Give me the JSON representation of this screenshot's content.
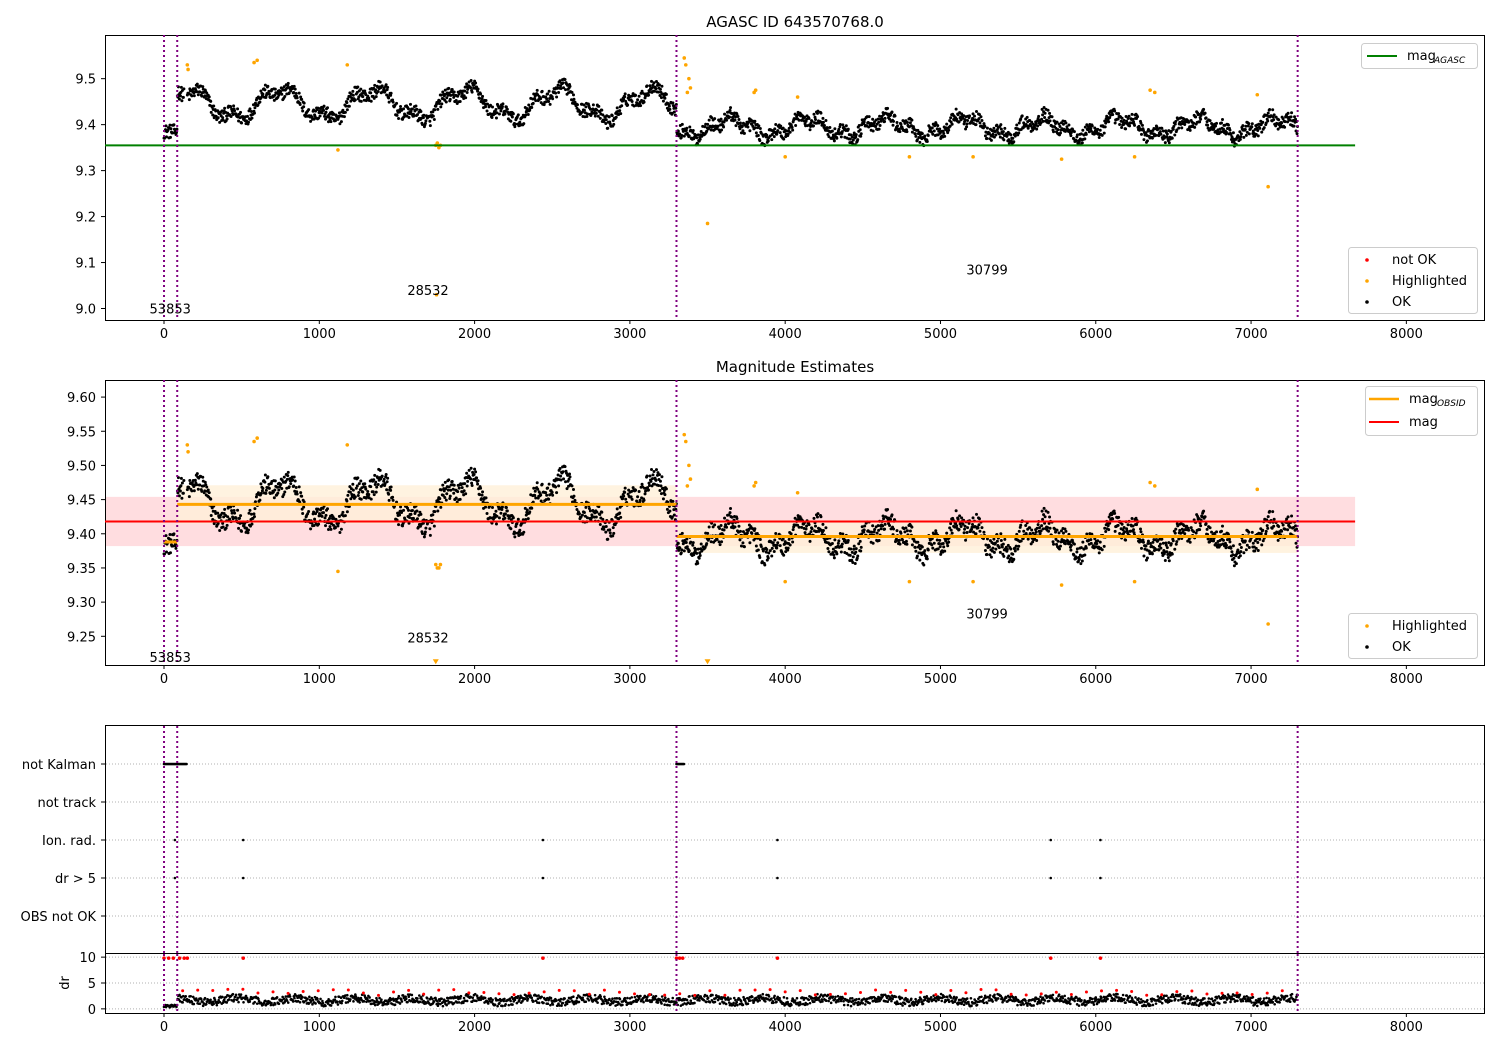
{
  "colors": {
    "ok": "#000000",
    "highlighted": "#ffa500",
    "not_ok": "#ff0000",
    "agasc_line": "#008000",
    "mag_line": "#ff0000",
    "obsid_line": "#ffa500",
    "obs_boundary": "#800080",
    "mag_band": "#ffdde0",
    "obsid_band": "#fff0d8"
  },
  "chart_data": [
    {
      "id": "agasc",
      "type": "scatter",
      "title": "AGASC ID 643570768.0",
      "xlim": [
        -380,
        8500
      ],
      "ylim": [
        8.975,
        9.595
      ],
      "xticks": [
        0,
        1000,
        2000,
        3000,
        4000,
        5000,
        6000,
        7000,
        8000
      ],
      "yticks": [
        9.0,
        9.1,
        9.2,
        9.3,
        9.4,
        9.5
      ],
      "ytick_labels": [
        "9.0",
        "9.1",
        "9.2",
        "9.3",
        "9.4",
        "9.5"
      ],
      "obs_boundaries": [
        0,
        85,
        3300,
        7300
      ],
      "obsid_labels": [
        {
          "text": "53853",
          "x": 40,
          "y": 9.0
        },
        {
          "text": "28532",
          "x": 1700,
          "y": 9.04
        },
        {
          "text": "30799",
          "x": 5300,
          "y": 9.085
        }
      ],
      "agasc_mag": 9.355,
      "agasc_line_x": [
        -380,
        7670
      ],
      "legend_lines": [
        {
          "label": "mag",
          "sub": "AGASC",
          "color": "#008000"
        }
      ],
      "legend_points": [
        {
          "label": "not OK",
          "color": "#ff0000"
        },
        {
          "label": "Highlighted",
          "color": "#ffa500"
        },
        {
          "label": "OK",
          "color": "#000000"
        }
      ],
      "highlighted_points": [
        [
          150,
          9.53
        ],
        [
          155,
          9.52
        ],
        [
          580,
          9.535
        ],
        [
          600,
          9.54
        ],
        [
          1120,
          9.345
        ],
        [
          1180,
          9.53
        ],
        [
          1750,
          9.355
        ],
        [
          1760,
          9.36
        ],
        [
          1770,
          9.35
        ],
        [
          1780,
          9.355
        ],
        [
          1755,
          9.03
        ],
        [
          3350,
          9.545
        ],
        [
          3360,
          9.53
        ],
        [
          3370,
          9.47
        ],
        [
          3380,
          9.5
        ],
        [
          3390,
          9.48
        ],
        [
          3500,
          9.185
        ],
        [
          3800,
          9.47
        ],
        [
          3810,
          9.475
        ],
        [
          4000,
          9.33
        ],
        [
          4080,
          9.46
        ],
        [
          4800,
          9.33
        ],
        [
          5210,
          9.33
        ],
        [
          5780,
          9.325
        ],
        [
          6250,
          9.33
        ],
        [
          6350,
          9.475
        ],
        [
          6380,
          9.47
        ],
        [
          7040,
          9.465
        ],
        [
          7110,
          9.265
        ]
      ],
      "segments": [
        {
          "x0": 0,
          "x1": 85,
          "level": 9.385
        },
        {
          "x0": 85,
          "x1": 3300,
          "level": 9.445
        },
        {
          "x0": 3300,
          "x1": 7300,
          "level": 9.395
        }
      ]
    },
    {
      "id": "magnitude",
      "type": "scatter",
      "title": "Magnitude Estimates",
      "xlim": [
        -380,
        8500
      ],
      "ylim": [
        9.208,
        9.625
      ],
      "xticks": [
        0,
        1000,
        2000,
        3000,
        4000,
        5000,
        6000,
        7000,
        8000
      ],
      "yticks": [
        9.25,
        9.3,
        9.35,
        9.4,
        9.45,
        9.5,
        9.55,
        9.6
      ],
      "ytick_labels": [
        "9.25",
        "9.30",
        "9.35",
        "9.40",
        "9.45",
        "9.50",
        "9.55",
        "9.60"
      ],
      "obs_boundaries": [
        0,
        85,
        3300,
        7300
      ],
      "obsid_labels": [
        {
          "text": "53853",
          "x": 40,
          "y": 9.22
        },
        {
          "text": "28532",
          "x": 1700,
          "y": 9.248
        },
        {
          "text": "30799",
          "x": 5300,
          "y": 9.283
        }
      ],
      "mag": 9.418,
      "mag_band": [
        9.382,
        9.454
      ],
      "mag_line_x": [
        -380,
        7670
      ],
      "obsid_segments": [
        {
          "x0": 0,
          "x1": 85,
          "mag": 9.388,
          "band": [
            9.38,
            9.396
          ]
        },
        {
          "x0": 85,
          "x1": 3300,
          "mag": 9.443,
          "band": [
            9.415,
            9.471
          ]
        },
        {
          "x0": 3300,
          "x1": 7300,
          "mag": 9.396,
          "band": [
            9.372,
            9.42
          ]
        }
      ],
      "legend_lines": [
        {
          "label": "mag",
          "sub": "OBSID",
          "color": "#ffa500"
        },
        {
          "label": "mag",
          "sub": "",
          "color": "#ff0000"
        }
      ],
      "legend_points": [
        {
          "label": "Highlighted",
          "color": "#ffa500"
        },
        {
          "label": "OK",
          "color": "#000000"
        }
      ],
      "highlighted_points": [
        [
          150,
          9.53
        ],
        [
          155,
          9.52
        ],
        [
          580,
          9.535
        ],
        [
          600,
          9.54
        ],
        [
          1120,
          9.345
        ],
        [
          1180,
          9.53
        ],
        [
          1750,
          9.355
        ],
        [
          1760,
          9.35
        ],
        [
          1770,
          9.35
        ],
        [
          1780,
          9.355
        ],
        [
          3350,
          9.545
        ],
        [
          3360,
          9.535
        ],
        [
          3370,
          9.47
        ],
        [
          3380,
          9.5
        ],
        [
          3390,
          9.48
        ],
        [
          3800,
          9.47
        ],
        [
          3810,
          9.475
        ],
        [
          4000,
          9.33
        ],
        [
          4080,
          9.46
        ],
        [
          4800,
          9.33
        ],
        [
          5210,
          9.33
        ],
        [
          5780,
          9.325
        ],
        [
          6250,
          9.33
        ],
        [
          6350,
          9.475
        ],
        [
          6380,
          9.47
        ],
        [
          7040,
          9.465
        ],
        [
          7110,
          9.268
        ]
      ],
      "off_scale_markers": [
        [
          1750,
          9.212
        ],
        [
          3500,
          9.212
        ]
      ]
    },
    {
      "id": "flags",
      "type": "scatter",
      "title": "",
      "xlim": [
        -380,
        8500
      ],
      "xticks": [
        0,
        1000,
        2000,
        3000,
        4000,
        5000,
        6000,
        7000,
        8000
      ],
      "obs_boundaries": [
        0,
        85,
        3300,
        7300
      ],
      "flag_rows": [
        "not Kalman",
        "not track",
        "Ion. rad.",
        "dr > 5",
        "OBS not OK"
      ],
      "flag_points": {
        "not Kalman": [
          [
            0,
            85
          ],
          [
            85,
            150
          ],
          [
            3300,
            3350
          ]
        ],
        "not track": [],
        "Ion. rad.": [
          70,
          510,
          2440,
          3950,
          5710,
          6030
        ],
        "dr > 5": [
          70,
          510,
          2440,
          3950,
          5710,
          6030
        ],
        "OBS not OK": []
      },
      "dr": {
        "ylabel": "dr",
        "yticks": [
          0,
          5,
          10
        ],
        "ylim": [
          -0.8,
          10.8
        ],
        "big_dr_x": [
          0,
          30,
          60,
          100,
          130,
          150,
          510,
          2440,
          3300,
          3320,
          3340,
          3950,
          5710,
          6030
        ]
      }
    }
  ]
}
